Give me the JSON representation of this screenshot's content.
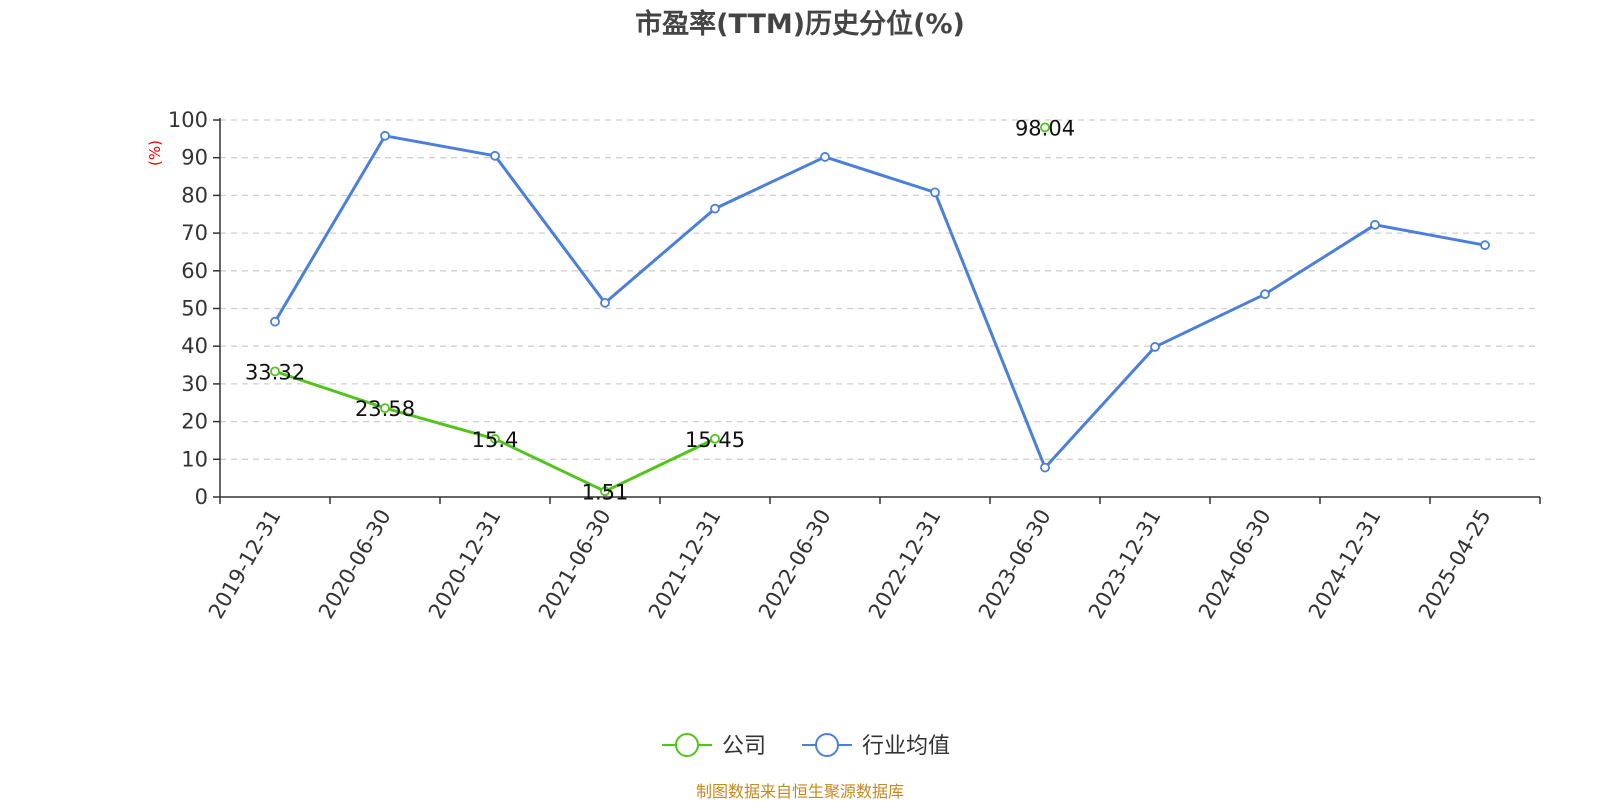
{
  "title": "市盈率(TTM)历史分位(%)",
  "footer": "制图数据来自恒生聚源数据库",
  "chart_data": {
    "type": "line",
    "title": "市盈率(TTM)历史分位(%)",
    "ylabel": "(%)",
    "ylim": [
      0,
      100
    ],
    "yticks": [
      0,
      10,
      20,
      30,
      40,
      50,
      60,
      70,
      80,
      90,
      100
    ],
    "grid": "horizontal dashed",
    "legend_position": "bottom",
    "categories": [
      "2019-12-31",
      "2020-06-30",
      "2020-12-31",
      "2021-06-30",
      "2021-12-31",
      "2022-06-30",
      "2022-12-31",
      "2023-06-30",
      "2023-12-31",
      "2024-06-30",
      "2024-12-31",
      "2025-04-25"
    ],
    "series": [
      {
        "name": "公司",
        "color": "#52c41a",
        "values": [
          33.32,
          23.58,
          15.4,
          1.51,
          15.45,
          null,
          null,
          98.04,
          null,
          null,
          null,
          null
        ],
        "labels": [
          "33.32",
          "23.58",
          "15.4",
          "1.51",
          "15.45",
          null,
          null,
          "98.04",
          null,
          null,
          null,
          null
        ]
      },
      {
        "name": "行业均值",
        "color": "#4b7fd9",
        "values": [
          46.5,
          95.8,
          90.5,
          51.5,
          76.5,
          90.2,
          80.8,
          7.8,
          39.8,
          53.8,
          72.2,
          66.8
        ]
      }
    ]
  }
}
